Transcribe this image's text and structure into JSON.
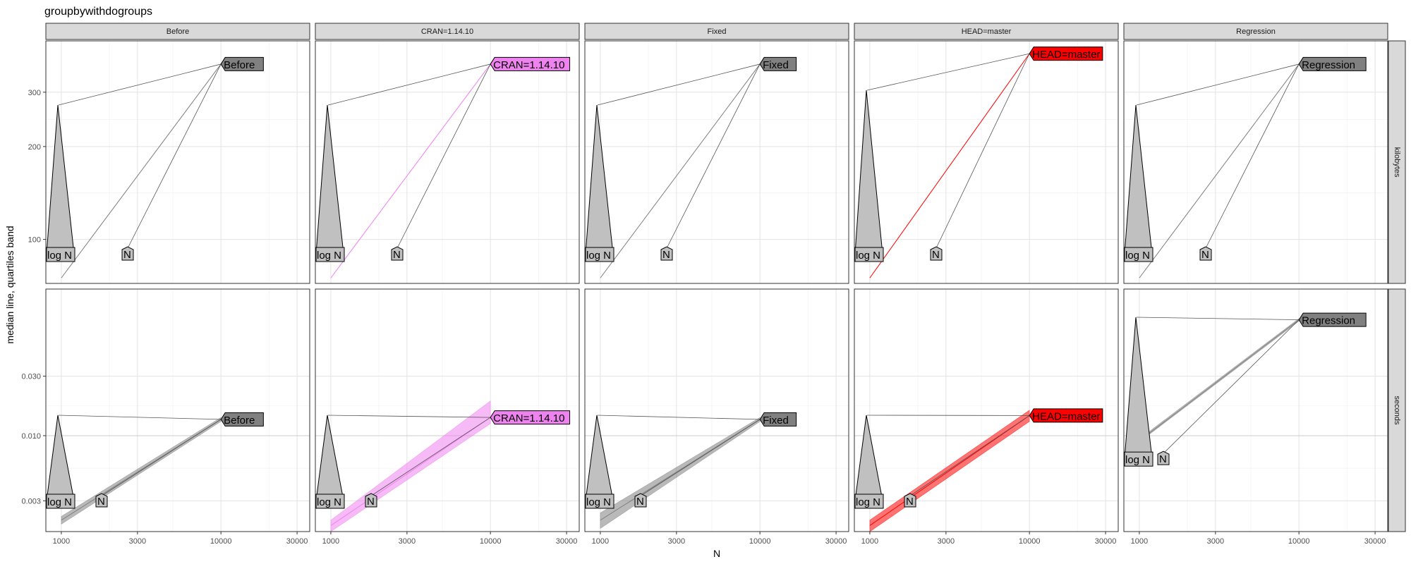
{
  "chart_data": {
    "type": "line",
    "title": "groupbywithdogroups",
    "xlabel": "N",
    "ylabel": "median line, quartiles band",
    "x_scale": "log10",
    "xlim": [
      800,
      36000
    ],
    "x_ticks": [
      1000,
      3000,
      10000,
      30000
    ],
    "x_tick_labels": [
      "1000",
      "3000",
      "10000",
      "30000"
    ],
    "columns": [
      "Before",
      "CRAN=1.14.10",
      "Fixed",
      "HEAD=master",
      "Regression"
    ],
    "rows": [
      "kilobytes",
      "seconds"
    ],
    "row_scales": {
      "kilobytes": {
        "scale": "log10",
        "ylim": [
          72,
          440
        ],
        "ticks": [
          100,
          200,
          300
        ],
        "tick_labels": [
          "100",
          "200",
          "300"
        ]
      },
      "seconds": {
        "scale": "log10",
        "ylim": [
          0.0017,
          0.15
        ],
        "ticks": [
          0.003,
          0.01,
          0.03
        ],
        "tick_labels": [
          "0.003",
          "0.010",
          "0.030"
        ]
      }
    },
    "hline": 0.01,
    "label_text": {
      "log": "log N",
      "n": "N"
    },
    "colors": {
      "Before": "#808080",
      "CRAN=1.14.10": "#ee82ee",
      "Fixed": "#808080",
      "HEAD=master": "#ff0000",
      "Regression": "#808080"
    },
    "panels": [
      {
        "row": "kilobytes",
        "col": "Before",
        "x": [
          1000,
          10000
        ],
        "median": [
          75,
          370
        ],
        "lo": [
          75,
          370
        ],
        "hi": [
          75,
          370
        ]
      },
      {
        "row": "kilobytes",
        "col": "CRAN=1.14.10",
        "x": [
          1000,
          10000
        ],
        "median": [
          75,
          370
        ],
        "lo": [
          75,
          370
        ],
        "hi": [
          75,
          370
        ]
      },
      {
        "row": "kilobytes",
        "col": "Fixed",
        "x": [
          1000,
          10000
        ],
        "median": [
          75,
          370
        ],
        "lo": [
          75,
          370
        ],
        "hi": [
          75,
          370
        ]
      },
      {
        "row": "kilobytes",
        "col": "HEAD=master",
        "x": [
          1000,
          10000
        ],
        "median": [
          75,
          400
        ],
        "lo": [
          75,
          400
        ],
        "hi": [
          75,
          400
        ]
      },
      {
        "row": "kilobytes",
        "col": "Regression",
        "x": [
          1000,
          10000
        ],
        "median": [
          75,
          370
        ],
        "lo": [
          75,
          370
        ],
        "hi": [
          75,
          370
        ]
      },
      {
        "row": "seconds",
        "col": "Before",
        "x": [
          1000,
          10000
        ],
        "median": [
          0.0021,
          0.0135
        ],
        "lo": [
          0.00195,
          0.013
        ],
        "hi": [
          0.00225,
          0.014
        ]
      },
      {
        "row": "seconds",
        "col": "CRAN=1.14.10",
        "x": [
          1000,
          10000
        ],
        "median": [
          0.0019,
          0.014
        ],
        "lo": [
          0.0017,
          0.0125
        ],
        "hi": [
          0.0021,
          0.019
        ]
      },
      {
        "row": "seconds",
        "col": "Fixed",
        "x": [
          1000,
          10000
        ],
        "median": [
          0.0021,
          0.0135
        ],
        "lo": [
          0.0018,
          0.013
        ],
        "hi": [
          0.0024,
          0.014
        ]
      },
      {
        "row": "seconds",
        "col": "HEAD=master",
        "x": [
          1000,
          10000
        ],
        "median": [
          0.0019,
          0.0145
        ],
        "lo": [
          0.0017,
          0.013
        ],
        "hi": [
          0.0021,
          0.016
        ]
      },
      {
        "row": "seconds",
        "col": "Regression",
        "x": [
          1000,
          10000
        ],
        "median": [
          0.0091,
          0.085
        ],
        "lo": [
          0.0089,
          0.083
        ],
        "hi": [
          0.0094,
          0.087
        ]
      }
    ]
  }
}
